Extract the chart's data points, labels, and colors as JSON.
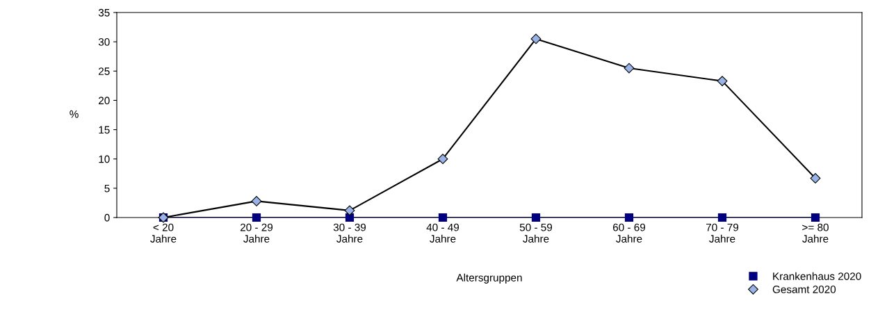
{
  "chart_data": {
    "type": "line",
    "xlabel": "Altersgruppen",
    "ylabel": "%",
    "categories": [
      "< 20\nJahre",
      "20 - 29\nJahre",
      "30 - 39\nJahre",
      "40 - 49\nJahre",
      "50 - 59\nJahre",
      "60 - 69\nJahre",
      "70 - 79\nJahre",
      ">= 80\nJahre"
    ],
    "series": [
      {
        "name": "Krankenhaus 2020",
        "color": "#000080",
        "marker": "square",
        "values": [
          0,
          0,
          0,
          0,
          0,
          0,
          0,
          0
        ]
      },
      {
        "name": "Gesamt 2020",
        "color": "#99b3e6",
        "marker": "diamond",
        "values": [
          0,
          2.8,
          1.2,
          10,
          30.5,
          25.5,
          23.3,
          6.7
        ]
      }
    ],
    "ylim": [
      0,
      35
    ],
    "yticks": [
      0,
      5,
      10,
      15,
      20,
      25,
      30,
      35
    ],
    "grid": false,
    "legend": "bottom right"
  }
}
